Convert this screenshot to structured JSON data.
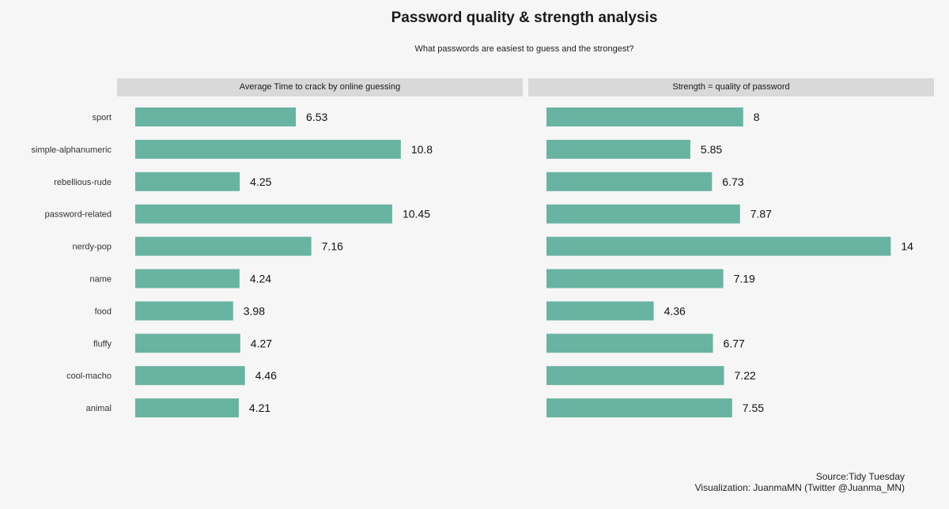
{
  "title": "Password quality & strength analysis",
  "subtitle": "What passwords are easiest to guess and the strongest?",
  "caption": {
    "source": "Source:Tidy Tuesday",
    "visualization": "Visualization: JuanmaMN (Twitter @Juanma_MN)"
  },
  "colors": {
    "bar": "#69b3a2",
    "background": "#f6f6f6",
    "strip": "#d9d9d9"
  },
  "chart_data": [
    {
      "type": "bar",
      "orientation": "horizontal",
      "panel_label": "Average Time to crack by online guessing",
      "categories": [
        "sport",
        "simple-alphanumeric",
        "rebellious-rude",
        "password-related",
        "nerdy-pop",
        "name",
        "food",
        "fluffy",
        "cool-macho",
        "animal"
      ],
      "values": [
        6.53,
        10.8,
        4.25,
        10.45,
        7.16,
        4.24,
        3.98,
        4.27,
        4.46,
        4.21
      ],
      "value_labels": [
        "6.53",
        "10.8",
        "4.25",
        "10.45",
        "7.16",
        "4.24",
        "3.98",
        "4.27",
        "4.46",
        "4.21"
      ],
      "xlim": [
        0,
        15.5
      ],
      "grid": false,
      "legend": "none"
    },
    {
      "type": "bar",
      "orientation": "horizontal",
      "panel_label": "Strength = quality of password",
      "categories": [
        "sport",
        "simple-alphanumeric",
        "rebellious-rude",
        "password-related",
        "nerdy-pop",
        "name",
        "food",
        "fluffy",
        "cool-macho",
        "animal"
      ],
      "values": [
        8,
        5.85,
        6.73,
        7.87,
        14,
        7.19,
        4.36,
        6.77,
        7.22,
        7.55
      ],
      "value_labels": [
        "8",
        "5.85",
        "6.73",
        "7.87",
        "14",
        "7.19",
        "4.36",
        "6.77",
        "7.22",
        "7.55"
      ],
      "xlim": [
        0,
        15.5
      ],
      "grid": false,
      "legend": "none"
    }
  ]
}
